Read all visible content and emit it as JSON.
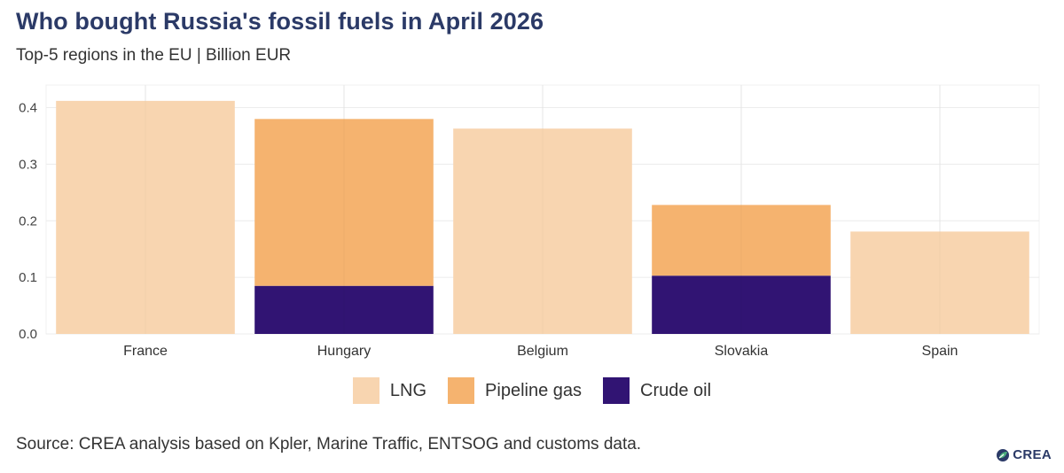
{
  "title": "Who bought Russia's fossil fuels in April 2026",
  "subtitle": "Top-5 regions in the EU | Billion EUR",
  "source": "Source: CREA analysis based on Kpler, Marine Traffic, ENTSOG and customs data.",
  "logo": {
    "text": "CREA",
    "icon": "crea-leaf-icon"
  },
  "colors": {
    "LNG": "#f8d5b0",
    "Pipeline gas": "#f5b36f",
    "Crude oil": "#311473",
    "title": "#2b3a67",
    "grid": "#ececec"
  },
  "chart_data": {
    "type": "bar",
    "stacked": true,
    "categories": [
      "France",
      "Hungary",
      "Belgium",
      "Slovakia",
      "Spain"
    ],
    "series": [
      {
        "name": "Crude oil",
        "values": [
          0,
          0.085,
          0,
          0.103,
          0
        ]
      },
      {
        "name": "Pipeline gas",
        "values": [
          0,
          0.295,
          0,
          0.125,
          0
        ]
      },
      {
        "name": "LNG",
        "values": [
          0.412,
          0,
          0.363,
          0,
          0.181
        ]
      }
    ],
    "legend": [
      "LNG",
      "Pipeline gas",
      "Crude oil"
    ],
    "legend_position": "bottom",
    "ylim": [
      0,
      0.44
    ],
    "yticks": [
      "0.0",
      "0.1",
      "0.2",
      "0.3",
      "0.4"
    ],
    "grid": true
  }
}
